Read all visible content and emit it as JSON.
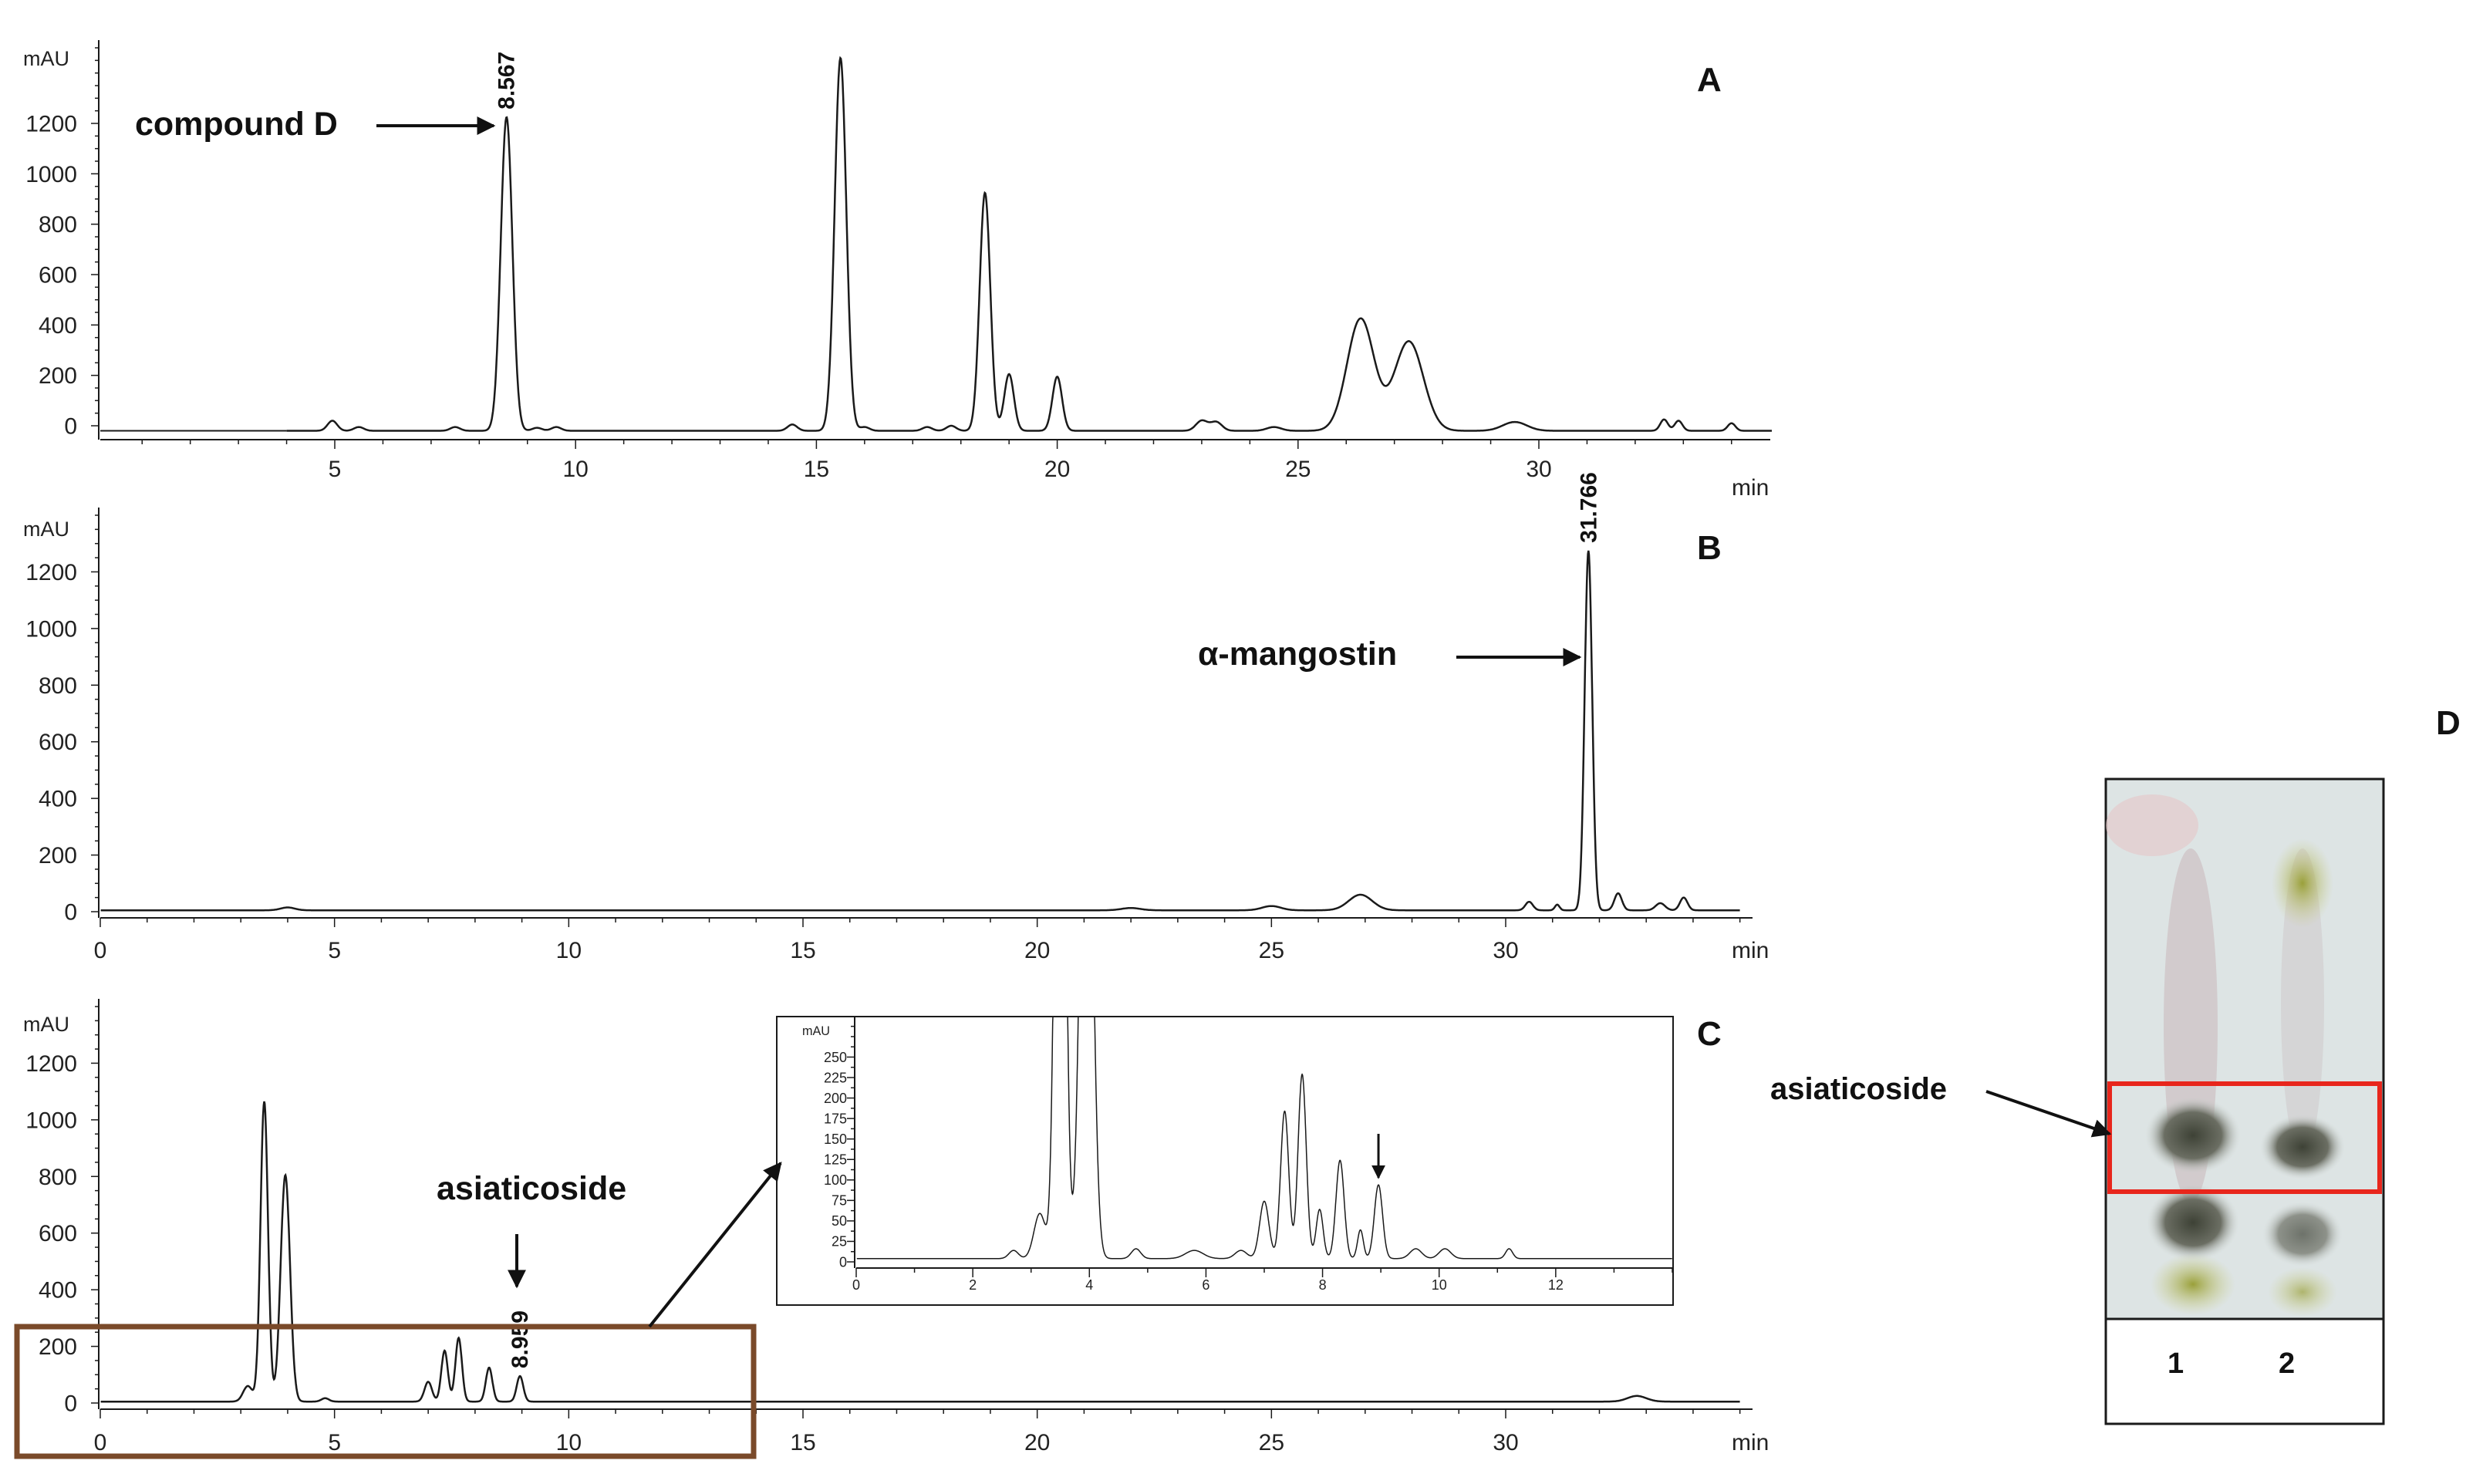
{
  "panels": {
    "A": {
      "label": "A"
    },
    "B": {
      "label": "B"
    },
    "C": {
      "label": "C"
    },
    "D": {
      "label": "D"
    }
  },
  "annotations": {
    "compound_d": "compound D",
    "alpha_mangostin": "α-mangostin",
    "asiaticoside_c": "asiaticoside",
    "asiaticoside_d": "asiaticoside",
    "lane1": "1",
    "lane2": "2"
  },
  "colors": {
    "trace": "#1a1a1a",
    "zoom_box": "#7a4a2a",
    "tlc_highlight": "#e8261c",
    "tlc_plate_bg": "#dde4e4"
  },
  "chart_data": [
    {
      "id": "A",
      "type": "line",
      "ylabel": "mAU",
      "xlabel": "min",
      "xlim": [
        -1,
        35
      ],
      "ylim": [
        -50,
        1500
      ],
      "xticks": [
        5,
        10,
        15,
        20,
        25,
        30
      ],
      "yticks": [
        0,
        200,
        400,
        600,
        800,
        1000,
        1200
      ],
      "peak_labels": [
        {
          "x": 8.567,
          "text": "8.567"
        }
      ],
      "baseline": -20,
      "peaks": [
        [
          4.95,
          40,
          0.1
        ],
        [
          5.5,
          15,
          0.1
        ],
        [
          7.5,
          15,
          0.1
        ],
        [
          8.567,
          1245,
          0.12
        ],
        [
          9.2,
          12,
          0.1
        ],
        [
          9.6,
          15,
          0.1
        ],
        [
          14.5,
          25,
          0.1
        ],
        [
          15.5,
          1480,
          0.12
        ],
        [
          16.0,
          15,
          0.1
        ],
        [
          17.3,
          15,
          0.1
        ],
        [
          17.8,
          20,
          0.1
        ],
        [
          18.5,
          945,
          0.11
        ],
        [
          19.0,
          225,
          0.1
        ],
        [
          20.0,
          215,
          0.1
        ],
        [
          23.0,
          40,
          0.12
        ],
        [
          23.3,
          35,
          0.12
        ],
        [
          24.5,
          15,
          0.15
        ],
        [
          26.3,
          445,
          0.28
        ],
        [
          27.3,
          355,
          0.3
        ],
        [
          29.5,
          35,
          0.25
        ],
        [
          32.6,
          45,
          0.08
        ],
        [
          32.9,
          40,
          0.08
        ],
        [
          34.0,
          30,
          0.08
        ]
      ]
    },
    {
      "id": "B",
      "type": "line",
      "ylabel": "mAU",
      "xlabel": "min",
      "xlim": [
        0,
        35
      ],
      "ylim": [
        0,
        1400
      ],
      "xticks": [
        0,
        5,
        10,
        15,
        20,
        25,
        30
      ],
      "yticks": [
        0,
        200,
        400,
        600,
        800,
        1000,
        1200
      ],
      "peak_labels": [
        {
          "x": 31.766,
          "text": "31.766"
        }
      ],
      "baseline": 5,
      "peaks": [
        [
          4.0,
          10,
          0.15
        ],
        [
          22.0,
          8,
          0.2
        ],
        [
          25.0,
          15,
          0.2
        ],
        [
          26.9,
          55,
          0.25
        ],
        [
          30.5,
          30,
          0.08
        ],
        [
          31.1,
          20,
          0.05
        ],
        [
          31.766,
          1270,
          0.08
        ],
        [
          32.4,
          60,
          0.08
        ],
        [
          33.3,
          25,
          0.1
        ],
        [
          33.8,
          45,
          0.08
        ]
      ]
    },
    {
      "id": "C",
      "type": "line",
      "ylabel": "mAU",
      "xlabel": "min",
      "xlim": [
        0,
        35
      ],
      "ylim": [
        0,
        1400
      ],
      "xticks": [
        0,
        5,
        10,
        15,
        20,
        25,
        30
      ],
      "yticks": [
        0,
        200,
        400,
        600,
        800,
        1000,
        1200
      ],
      "peak_labels": [
        {
          "x": 8.959,
          "text": "8.959"
        }
      ],
      "baseline": 5,
      "peaks": [
        [
          3.15,
          55,
          0.1
        ],
        [
          3.5,
          1060,
          0.08
        ],
        [
          3.95,
          800,
          0.1
        ],
        [
          4.8,
          12,
          0.08
        ],
        [
          7.0,
          70,
          0.08
        ],
        [
          7.35,
          180,
          0.07
        ],
        [
          7.65,
          225,
          0.07
        ],
        [
          8.3,
          120,
          0.07
        ],
        [
          8.959,
          90,
          0.07
        ],
        [
          32.8,
          20,
          0.2
        ]
      ]
    },
    {
      "id": "C-inset",
      "type": "line",
      "ylabel": "mAU",
      "xlim": [
        0,
        14
      ],
      "ylim": [
        0,
        290
      ],
      "xticks": [
        0,
        2,
        4,
        6,
        8,
        10,
        12
      ],
      "yticks": [
        0,
        25,
        50,
        75,
        100,
        125,
        150,
        175,
        200,
        225,
        250
      ],
      "baseline": 4,
      "peaks": [
        [
          2.7,
          10,
          0.08
        ],
        [
          3.15,
          55,
          0.1
        ],
        [
          3.5,
          1060,
          0.08
        ],
        [
          3.95,
          800,
          0.1
        ],
        [
          4.8,
          12,
          0.08
        ],
        [
          5.8,
          10,
          0.15
        ],
        [
          6.6,
          10,
          0.1
        ],
        [
          7.0,
          70,
          0.08
        ],
        [
          7.35,
          180,
          0.07
        ],
        [
          7.65,
          225,
          0.07
        ],
        [
          7.95,
          60,
          0.06
        ],
        [
          8.3,
          120,
          0.07
        ],
        [
          8.65,
          35,
          0.05
        ],
        [
          8.959,
          90,
          0.07
        ],
        [
          9.6,
          12,
          0.1
        ],
        [
          10.1,
          12,
          0.1
        ],
        [
          11.2,
          12,
          0.06
        ]
      ]
    }
  ]
}
